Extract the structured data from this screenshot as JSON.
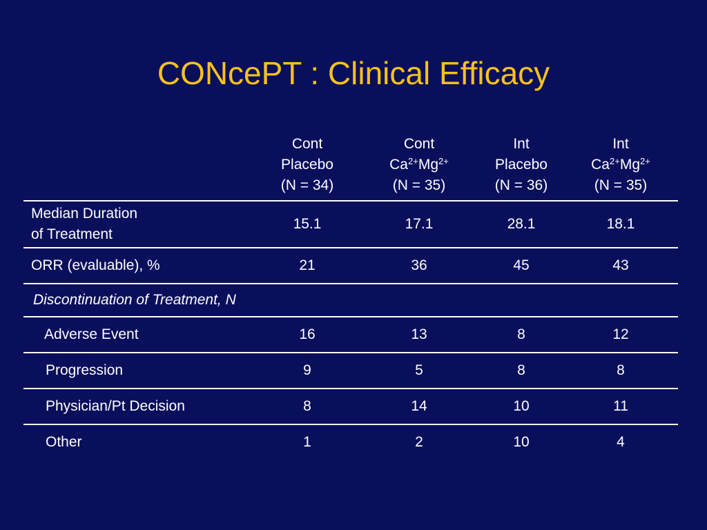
{
  "title": "CONcePT : Clinical Efficacy",
  "columns": [
    {
      "line1": "Cont",
      "line2_text": "Placebo",
      "line3": "(N = 34)"
    },
    {
      "line1": "Cont",
      "ion1": "Ca",
      "ion1_charge": "2+",
      "ion2": "Mg",
      "ion2_charge": "2+",
      "line3": "(N = 35)"
    },
    {
      "line1": "Int",
      "line2_text": "Placebo",
      "line3": "(N = 36)"
    },
    {
      "line1": "Int",
      "ion1": "Ca",
      "ion1_charge": "2+",
      "ion2": "Mg",
      "ion2_charge": "2+",
      "line3": "(N = 35)"
    }
  ],
  "rows": {
    "median": {
      "label_line1": "Median Duration",
      "label_line2": "of Treatment",
      "values": [
        "15.1",
        "17.1",
        "28.1",
        "18.1"
      ]
    },
    "orr": {
      "label": "ORR (evaluable), %",
      "values": [
        "21",
        "36",
        "45",
        "43"
      ]
    },
    "discontinuation": {
      "label": "Discontinuation of Treatment, N"
    },
    "adverse": {
      "label": "Adverse Event",
      "values": [
        "16",
        "13",
        "8",
        "12"
      ]
    },
    "progression": {
      "label": "Progression",
      "values": [
        "9",
        "5",
        "8",
        "8"
      ]
    },
    "physician": {
      "label": "Physician/Pt Decision",
      "values": [
        "8",
        "14",
        "10",
        "11"
      ]
    },
    "other": {
      "label": "Other",
      "values": [
        "1",
        "2",
        "10",
        "4"
      ]
    }
  },
  "colors": {
    "background": "#0a0f5c",
    "title": "#f7c21a",
    "text": "#ffffff"
  }
}
